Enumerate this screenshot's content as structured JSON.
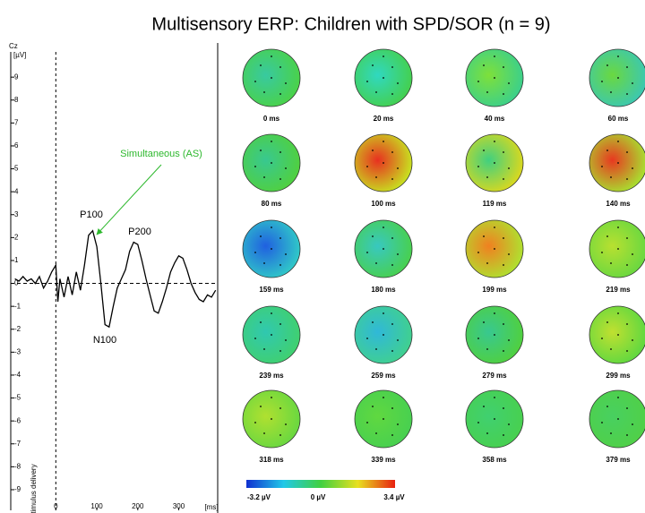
{
  "title": "Multisensory ERP: Children with SPD/SOR (n = 9)",
  "chart_data": {
    "type": "line",
    "channel": "Cz",
    "ylabel": "[µV]",
    "xlabel": "[ms]",
    "stimulus_label": "stimulus delivery",
    "x": [
      -100,
      -90,
      -80,
      -70,
      -60,
      -50,
      -40,
      -30,
      -20,
      -10,
      0,
      5,
      10,
      20,
      30,
      40,
      50,
      60,
      70,
      80,
      90,
      100,
      110,
      120,
      130,
      140,
      150,
      160,
      170,
      180,
      190,
      200,
      210,
      220,
      230,
      240,
      250,
      260,
      270,
      280,
      290,
      300,
      310,
      320,
      330,
      340,
      350,
      360,
      370,
      380,
      390
    ],
    "series": [
      {
        "name": "Simultaneous (AS)",
        "color": "#000000",
        "values": [
          0.2,
          0.1,
          0.3,
          0.1,
          0.2,
          0.0,
          0.3,
          -0.2,
          0.1,
          0.5,
          0.8,
          -0.8,
          0.2,
          -0.6,
          0.3,
          -0.5,
          0.5,
          -0.3,
          0.8,
          2.1,
          2.3,
          1.6,
          0,
          -1.8,
          -1.9,
          -1,
          -0.2,
          0.2,
          0.6,
          1.4,
          1.8,
          1.7,
          1,
          0.2,
          -0.5,
          -1.2,
          -1.3,
          -0.8,
          -0.2,
          0.5,
          0.9,
          1.2,
          1.1,
          0.6,
          0,
          -0.4,
          -0.7,
          -0.8,
          -0.5,
          -0.6,
          -0.3
        ]
      }
    ],
    "xlim": [
      -110,
      395
    ],
    "ylim": [
      -9.9,
      10.1
    ],
    "xticks": [
      0,
      100,
      200,
      300
    ],
    "yticks": [
      9,
      8,
      7,
      6,
      5,
      4,
      3,
      2,
      1,
      0,
      -1,
      -2,
      -3,
      -4,
      -5,
      -6,
      -7,
      -8,
      -9
    ],
    "annotations": [
      "P100",
      "N100",
      "P200",
      "Simultaneous (AS)"
    ],
    "annotation_color": "#2db82d"
  },
  "topomaps": [
    {
      "label": "0 ms",
      "color": "#4ad24a",
      "spot": "#38c9a0"
    },
    {
      "label": "20 ms",
      "color": "#44d050",
      "spot": "#30d8c0"
    },
    {
      "label": "40 ms",
      "color": "#3cd08a",
      "spot": "#7ee03a"
    },
    {
      "label": "60 ms",
      "color": "#3cc8b0",
      "spot": "#6ad840"
    },
    {
      "label": "80 ms",
      "color": "#50d040",
      "spot": "#38c890"
    },
    {
      "label": "100 ms",
      "color": "#c8e020",
      "spot": "#e83020"
    },
    {
      "label": "119 ms",
      "color": "#d8d820",
      "spot": "#40d080"
    },
    {
      "label": "140 ms",
      "color": "#a8e030",
      "spot": "#e83820"
    },
    {
      "label": "159 ms",
      "color": "#30c8c8",
      "spot": "#2060e0"
    },
    {
      "label": "180 ms",
      "color": "#48d050",
      "spot": "#38c8c0"
    },
    {
      "label": "199 ms",
      "color": "#b0e030",
      "spot": "#f08020"
    },
    {
      "label": "219 ms",
      "color": "#6ad840",
      "spot": "#b8e030"
    },
    {
      "label": "239 ms",
      "color": "#40d070",
      "spot": "#30c8b0"
    },
    {
      "label": "259 ms",
      "color": "#40d090",
      "spot": "#30b8d8"
    },
    {
      "label": "279 ms",
      "color": "#50d040",
      "spot": "#38c890"
    },
    {
      "label": "299 ms",
      "color": "#60d840",
      "spot": "#c0e030"
    },
    {
      "label": "318 ms",
      "color": "#6ad840",
      "spot": "#b0e030"
    },
    {
      "label": "339 ms",
      "color": "#48d050",
      "spot": "#60d840"
    },
    {
      "label": "358 ms",
      "color": "#48d050",
      "spot": "#40d070"
    },
    {
      "label": "379 ms",
      "color": "#50d048",
      "spot": "#48d060"
    }
  ],
  "colorbar": {
    "labels": [
      "-3.2 µV",
      "0 µV",
      "3.4 µV"
    ]
  }
}
